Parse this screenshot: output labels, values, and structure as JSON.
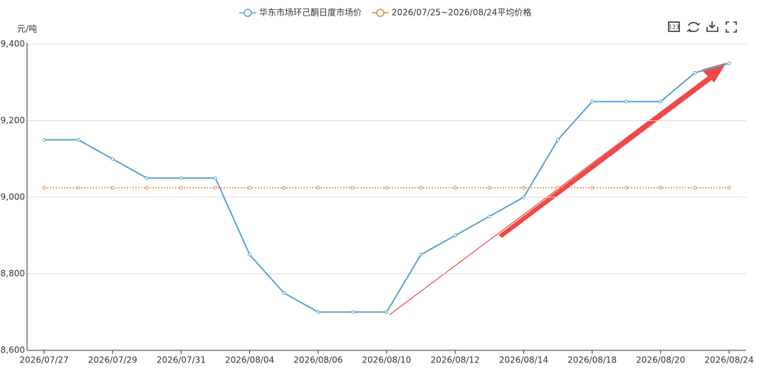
{
  "chart_data": {
    "type": "line",
    "y_unit": "元/吨",
    "categories": [
      "2026/07/27",
      null,
      "2026/07/29",
      null,
      "2026/07/31",
      null,
      "2026/08/04",
      null,
      "2026/08/06",
      null,
      "2026/08/10",
      null,
      "2026/08/12",
      null,
      "2026/08/14",
      null,
      "2026/08/18",
      null,
      "2026/08/20",
      null,
      "2026/08/24"
    ],
    "series": [
      {
        "name": "华东市场环己酮日度市场价",
        "color": "#5ba3c9",
        "style": "solid",
        "values": [
          9150,
          9150,
          9100,
          9050,
          9050,
          9050,
          8850,
          8750,
          8700,
          8700,
          8700,
          8850,
          8900,
          8950,
          9000,
          9150,
          9250,
          9250,
          9250,
          9325,
          9350
        ]
      },
      {
        "name": "2026/07/25~2026/08/24平均价格",
        "color": "#e8863a",
        "style": "dotted",
        "values": [
          9025,
          9025,
          9025,
          9025,
          9025,
          9025,
          9025,
          9025,
          9025,
          9025,
          9025,
          9025,
          9025,
          9025,
          9025,
          9025,
          9025,
          9025,
          9025,
          9025,
          9025
        ]
      }
    ],
    "ylim": [
      8600,
      9400
    ],
    "yticks": [
      {
        "value": 8600,
        "label": "8,600"
      },
      {
        "value": 8800,
        "label": "8,800"
      },
      {
        "value": 9000,
        "label": "9,000"
      },
      {
        "value": 9200,
        "label": "9,200"
      },
      {
        "value": 9400,
        "label": "9,400"
      }
    ],
    "grid": true
  }
}
